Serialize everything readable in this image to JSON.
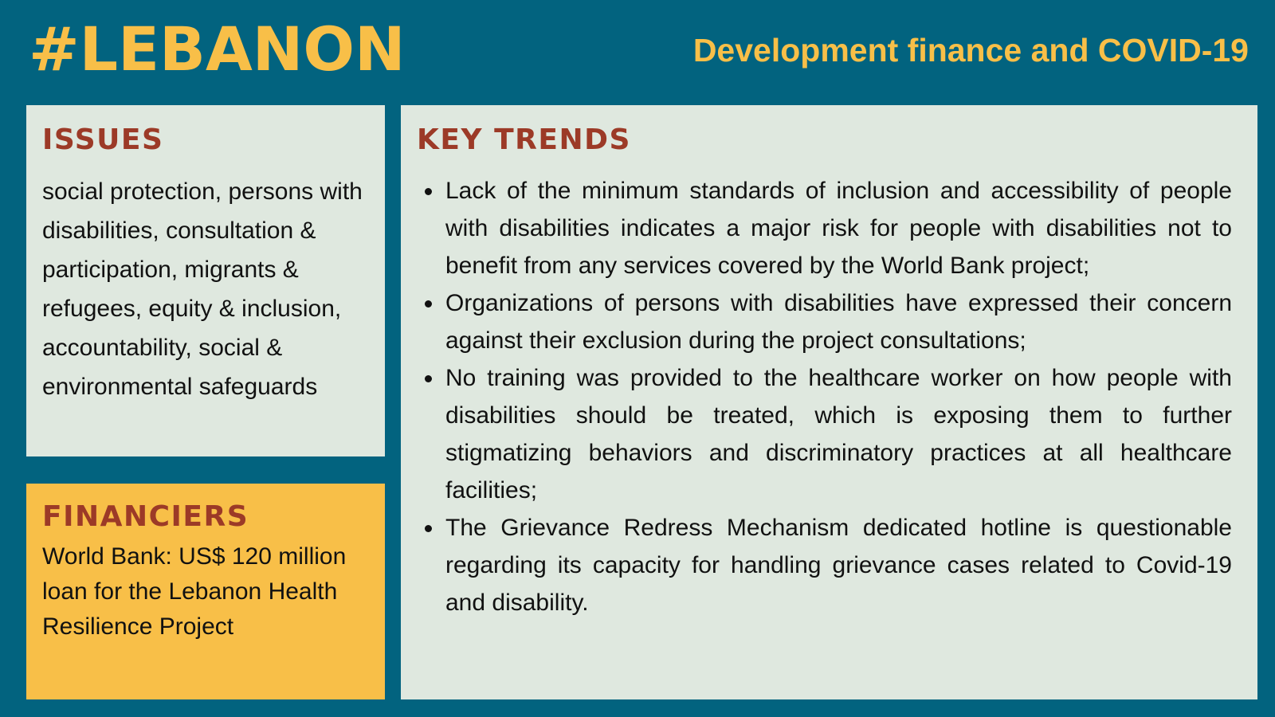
{
  "header": {
    "title": "#LEBANON",
    "subtitle": "Development finance and COVID-19"
  },
  "issues": {
    "heading": "ISSUES",
    "text": "social protection, persons with disabilities, consultation & participation, migrants & refugees, equity & inclusion, accountability, social & environmental safeguards"
  },
  "financiers": {
    "heading": "FINANCIERS",
    "text": "World Bank: US$ 120 million loan for the Lebanon Health Resilience Project"
  },
  "key_trends": {
    "heading": "KEY TRENDS",
    "items": [
      "Lack of the minimum standards of inclusion and accessibility of people with disabilities indicates a major risk for people with disabilities not to benefit from any services covered by the World Bank project;",
      "Organizations of persons with disabilities have expressed their concern against their exclusion during the project consultations;",
      "No training was provided to the healthcare worker on how people with disabilities should be treated, which is exposing them to further stigmatizing behaviors and discriminatory practices at all healthcare facilities;",
      "The Grievance Redress Mechanism dedicated hotline is questionable regarding its capacity for handling grievance cases related to Covid-19 and disability."
    ]
  },
  "colors": {
    "background": "#02637f",
    "accent": "#f8bf48",
    "panel": "#dfe8df",
    "heading": "#9c3a27"
  }
}
